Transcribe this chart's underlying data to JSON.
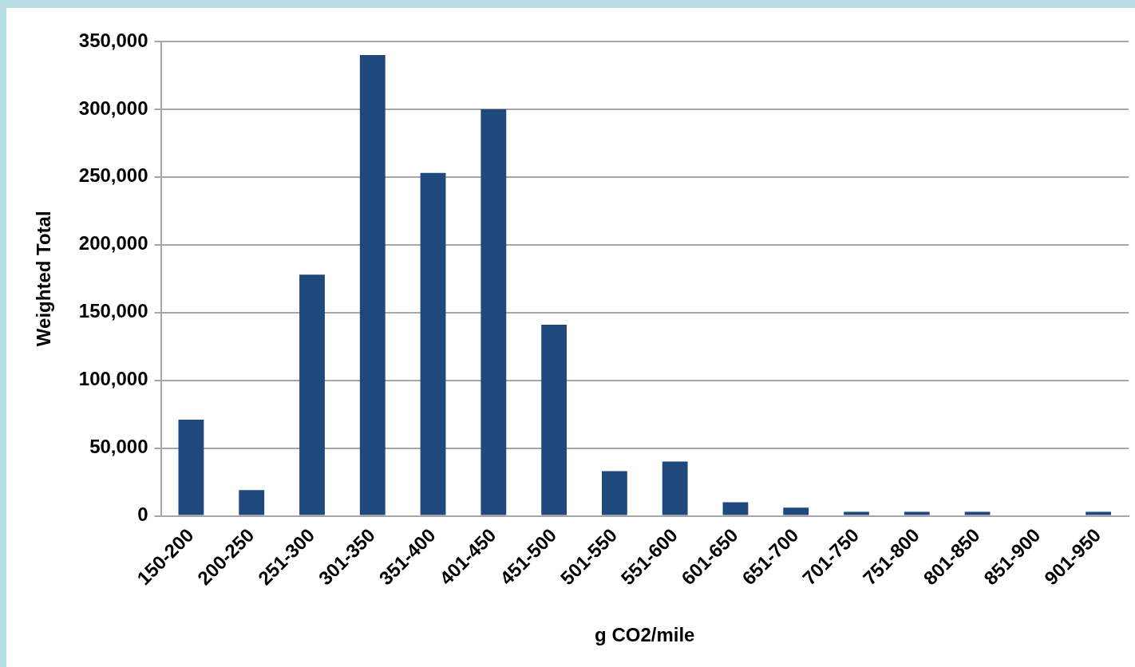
{
  "chart_data": {
    "type": "bar",
    "xlabel": "g CO2/mile",
    "ylabel": "Weighted Total",
    "categories": [
      "150-200",
      "200-250",
      "251-300",
      "301-350",
      "351-400",
      "401-450",
      "451-500",
      "501-550",
      "551-600",
      "601-650",
      "651-700",
      "701-750",
      "751-800",
      "801-850",
      "851-900",
      "901-950"
    ],
    "values": [
      71000,
      19000,
      178000,
      340000,
      253000,
      300000,
      141000,
      33000,
      40000,
      10000,
      6000,
      3000,
      3000,
      3000,
      0,
      3000
    ],
    "color": "#1f497d",
    "ylim": [
      0,
      350000
    ],
    "yticks": [
      0,
      {
        "value": 50000,
        "label": "50,000"
      },
      {
        "value": 100000,
        "label": "100,000"
      },
      {
        "value": 150000,
        "label": "150,000"
      },
      {
        "value": 200000,
        "label": "200,000"
      },
      {
        "value": 250000,
        "label": "250,000"
      },
      {
        "value": 300000,
        "label": "300,000"
      },
      {
        "value": 350000,
        "label": "350,000"
      }
    ],
    "grid": "y",
    "legend": false
  }
}
